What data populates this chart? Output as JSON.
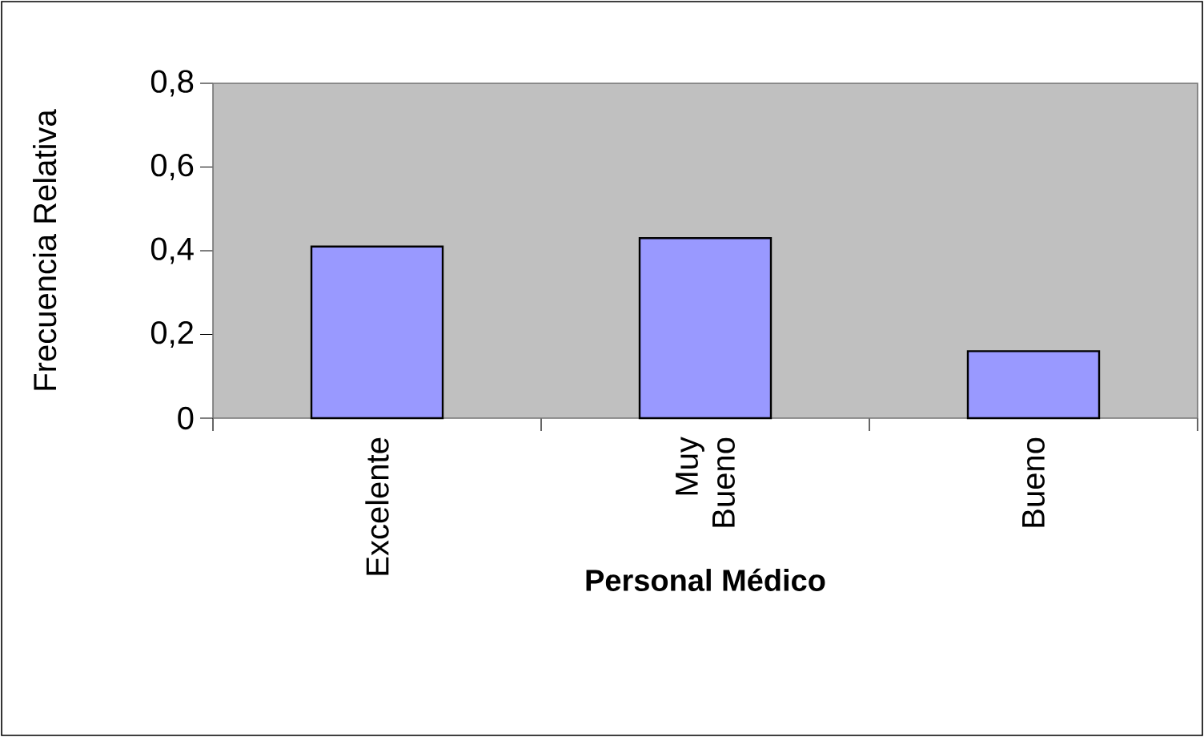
{
  "chart_data": {
    "type": "bar",
    "xlabel": "Personal Médico",
    "ylabel": "Frecuencia Relativa",
    "categories": [
      "Excelente",
      "Muy Bueno",
      "Bueno"
    ],
    "values": [
      0.41,
      0.43,
      0.16
    ],
    "color": "#9999ff",
    "ylim": [
      0,
      0.8
    ],
    "yticks": [
      0,
      {
        "value": 0.2,
        "label": "0,2"
      },
      {
        "value": 0.4,
        "label": "0,4"
      },
      {
        "value": 0.6,
        "label": "0,6"
      },
      {
        "value": 0.8,
        "label": "0,8"
      }
    ]
  }
}
